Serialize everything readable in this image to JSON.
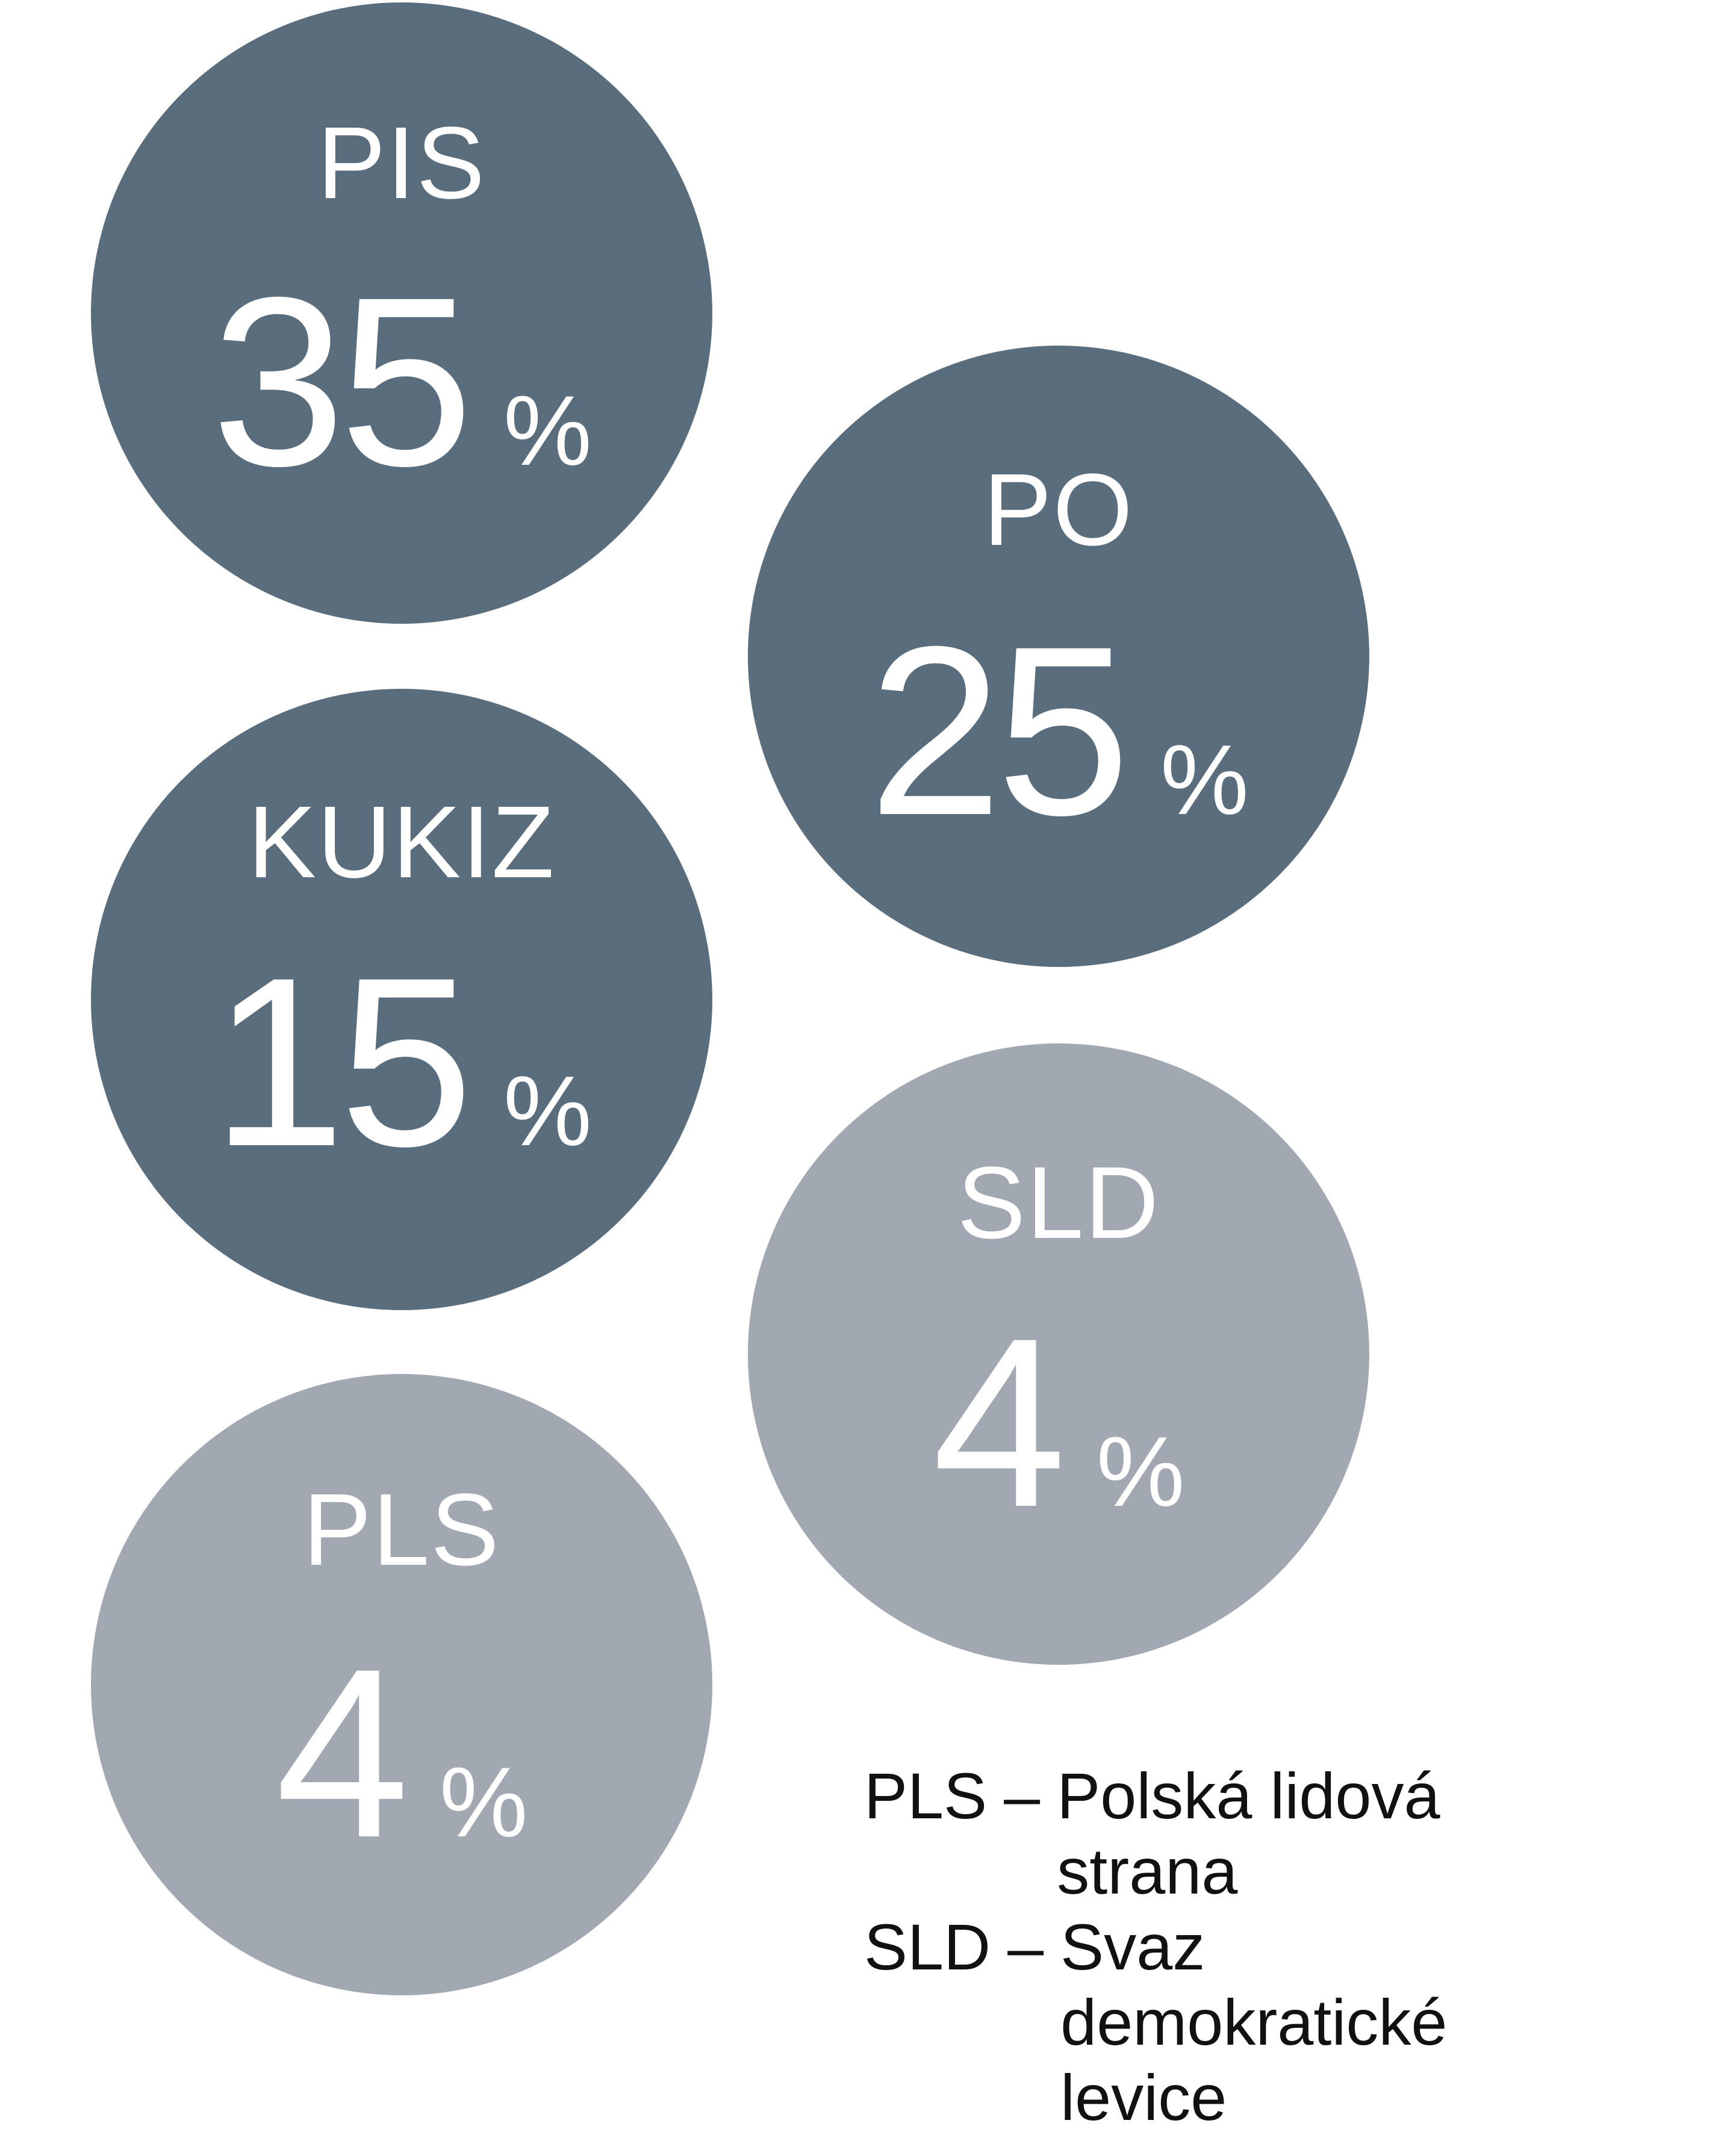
{
  "chart_data": {
    "type": "bubble",
    "unit": "%",
    "items": [
      {
        "party": "PIS",
        "value": 35,
        "color": "#596d7d"
      },
      {
        "party": "PO",
        "value": 25,
        "color": "#596d7d"
      },
      {
        "party": "KUKIZ",
        "value": 15,
        "color": "#596d7d"
      },
      {
        "party": "SLD",
        "value": 4,
        "color": "#a2a8b2"
      },
      {
        "party": "PLS",
        "value": 4,
        "color": "#a2a8b2"
      }
    ]
  },
  "legend": [
    {
      "abbr": "PLS",
      "sep": "–",
      "text": "Polská lidová strana"
    },
    {
      "abbr": "SLD",
      "sep": "–",
      "text": "Svaz demokratické levice"
    }
  ]
}
